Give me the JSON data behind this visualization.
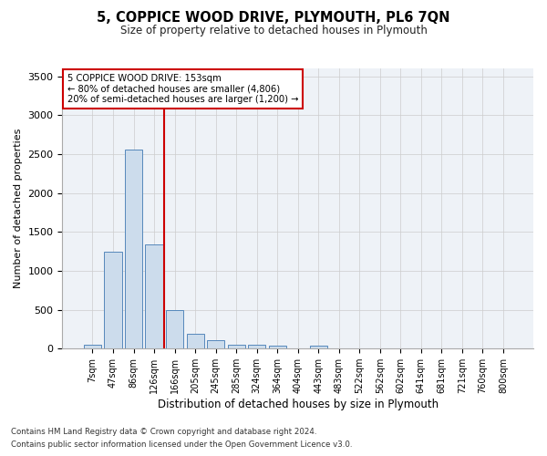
{
  "title": "5, COPPICE WOOD DRIVE, PLYMOUTH, PL6 7QN",
  "subtitle": "Size of property relative to detached houses in Plymouth",
  "xlabel": "Distribution of detached houses by size in Plymouth",
  "ylabel": "Number of detached properties",
  "bar_labels": [
    "7sqm",
    "47sqm",
    "86sqm",
    "126sqm",
    "166sqm",
    "205sqm",
    "245sqm",
    "285sqm",
    "324sqm",
    "364sqm",
    "404sqm",
    "443sqm",
    "483sqm",
    "522sqm",
    "562sqm",
    "602sqm",
    "641sqm",
    "681sqm",
    "721sqm",
    "760sqm",
    "800sqm"
  ],
  "bar_values": [
    55,
    1240,
    2560,
    1340,
    500,
    190,
    105,
    50,
    45,
    35,
    0,
    35,
    0,
    0,
    0,
    0,
    0,
    0,
    0,
    0,
    0
  ],
  "bar_color": "#ccdcec",
  "bar_edge_color": "#5588bb",
  "red_line_x": 3.5,
  "annotation_lines": [
    "5 COPPICE WOOD DRIVE: 153sqm",
    "← 80% of detached houses are smaller (4,806)",
    "20% of semi-detached houses are larger (1,200) →"
  ],
  "ylim": [
    0,
    3600
  ],
  "yticks": [
    0,
    500,
    1000,
    1500,
    2000,
    2500,
    3000,
    3500
  ],
  "footer_line1": "Contains HM Land Registry data © Crown copyright and database right 2024.",
  "footer_line2": "Contains public sector information licensed under the Open Government Licence v3.0.",
  "background_color": "#ffffff",
  "plot_bg_color": "#eef2f7",
  "grid_color": "#cccccc",
  "red_line_color": "#cc0000",
  "annotation_box_color": "#ffffff",
  "annotation_border_color": "#cc0000"
}
